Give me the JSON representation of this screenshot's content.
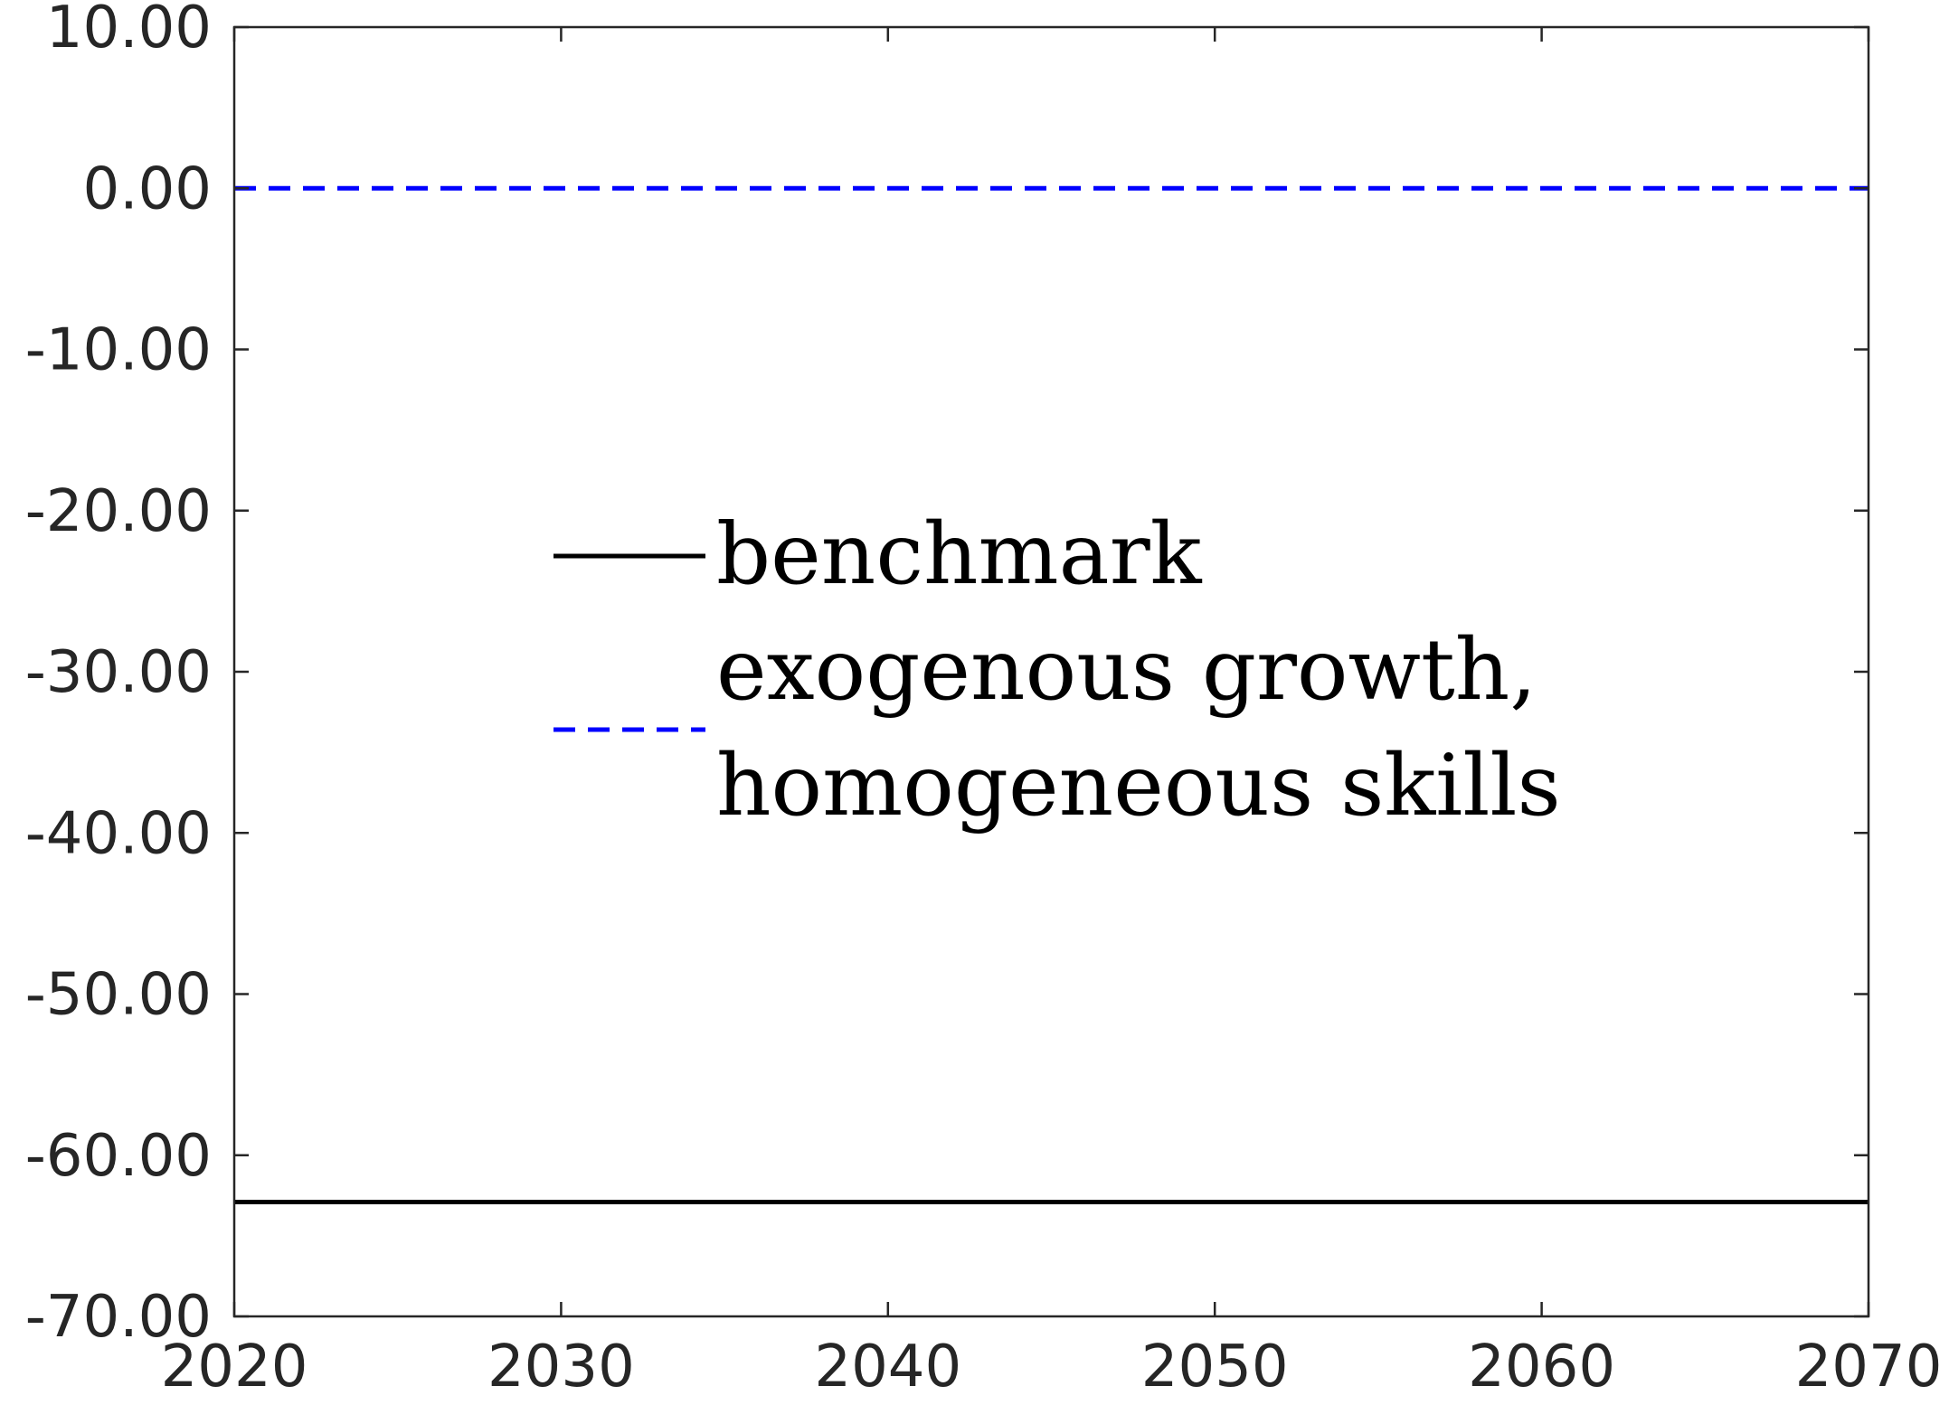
{
  "chart_data": {
    "type": "line",
    "title": "",
    "xlabel": "",
    "ylabel": "",
    "xlim": [
      2020,
      2070
    ],
    "ylim": [
      -70,
      10
    ],
    "x_ticks": [
      "2020",
      "2030",
      "2040",
      "2050",
      "2060",
      "2070"
    ],
    "y_ticks": [
      "10.00",
      "0.00",
      "-10.00",
      "-20.00",
      "-30.00",
      "-40.00",
      "-50.00",
      "-60.00",
      "-70.00"
    ],
    "grid": false,
    "legend_position": "center",
    "series": [
      {
        "name": "benchmark",
        "legend_lines": [
          "benchmark"
        ],
        "color": "#000000",
        "style": "solid",
        "x": [
          2020,
          2070
        ],
        "y": [
          -62.9,
          -62.9
        ]
      },
      {
        "name": "exogenous growth, homogeneous skills",
        "legend_lines": [
          "exogenous growth,",
          "homogeneous skills"
        ],
        "color": "#0000ff",
        "style": "dashed",
        "x": [
          2020,
          2070
        ],
        "y": [
          0,
          0
        ]
      }
    ]
  }
}
